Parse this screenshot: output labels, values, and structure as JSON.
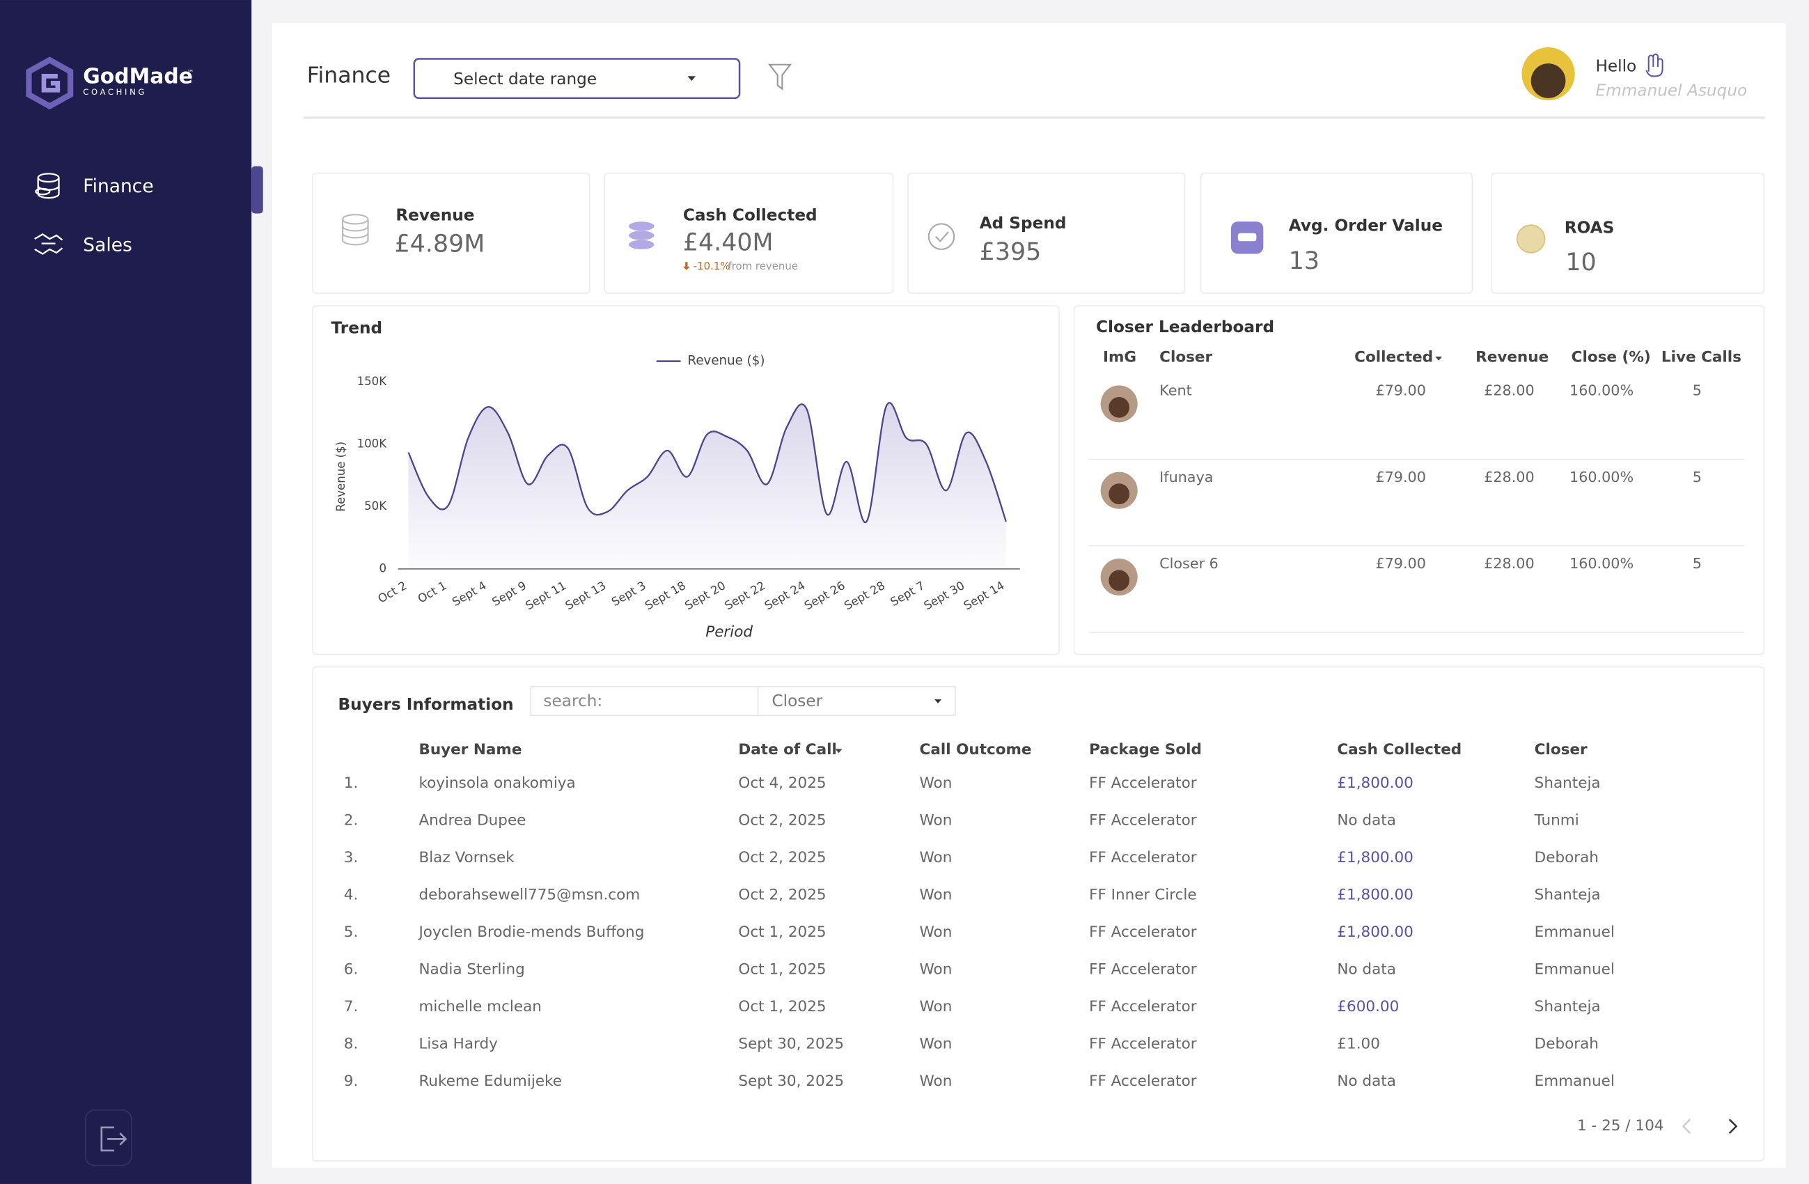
{
  "sidebar": {
    "brand": "GodMade",
    "brand_sub": "COACHING",
    "brand_mark": "™",
    "nav": [
      "Finance",
      "Sales"
    ]
  },
  "header": {
    "title": "Finance",
    "date_select": "Select date range",
    "greeting": "Hello",
    "user": "Emmanuel Asuquo"
  },
  "kpis": [
    {
      "label": "Revenue",
      "value": "£4.89M"
    },
    {
      "label": "Cash Collected",
      "value": "£4.40M",
      "change": "-10.1%",
      "change_note": "from revenue"
    },
    {
      "label": "Ad Spend",
      "value": "£395"
    },
    {
      "label": "Avg. Order Value",
      "value": 13
    },
    {
      "label": "ROAS",
      "value": 10
    }
  ],
  "trend": {
    "type": "line",
    "title": "Trend",
    "y_label": "Revenue ($)",
    "x_label": "Period",
    "categories": [
      "Oct 2",
      null,
      "Oct 1",
      null,
      "Sept 4",
      null,
      "Sept 9",
      null,
      "Sept 11",
      null,
      "Sept 13",
      null,
      "Sept 3",
      null,
      "Sept 18",
      null,
      "Sept 20",
      null,
      "Sept 22",
      null,
      "Sept 24",
      null,
      "Sept 26",
      null,
      "Sept 28",
      null,
      "Sept 7",
      null,
      "Sept 30",
      null,
      "Sept 14"
    ],
    "series": [
      {
        "name": "Revenue ($)",
        "color": "#4b4592",
        "values": [
          93500,
          58000,
          51000,
          105000,
          130000,
          109000,
          68000,
          91000,
          97000,
          49000,
          46000,
          63000,
          74000,
          95000,
          74000,
          108000,
          106000,
          95000,
          68000,
          114000,
          128000,
          44000,
          86000,
          38000,
          131000,
          105000,
          100000,
          63000,
          109000,
          86000,
          38000
        ]
      }
    ],
    "ylim": [
      0,
      150000
    ],
    "yticks": [
      {
        "value": 0,
        "label": "0"
      },
      {
        "value": 50000,
        "label": "50K"
      },
      {
        "value": 100000,
        "label": "100K"
      },
      {
        "value": 150000,
        "label": "150K"
      }
    ],
    "grid": false,
    "legend": "top"
  },
  "leaderboard": {
    "title": "Closer Leaderboard",
    "columns": [
      "ImG",
      "Closer",
      "Collected",
      "Revenue",
      "Close (%)",
      "Live Calls"
    ],
    "rows": [
      [
        "Kent",
        "£79.00",
        "£28.00",
        "160.00%",
        5
      ],
      [
        "Ifunaya",
        "£79.00",
        "£28.00",
        "160.00%",
        5
      ],
      [
        "Closer 6",
        "£79.00",
        "£28.00",
        "160.00%",
        5
      ]
    ]
  },
  "buyers": {
    "title": "Buyers Information",
    "search": "search:",
    "filter": "Closer",
    "columns": [
      "Buyer Name",
      "Date of Call",
      "Call Outcome",
      "Package Sold",
      "Cash Collected",
      "Closer"
    ],
    "rows": [
      [
        "1.",
        "koyinsola onakomiya",
        "Oct 4, 2025",
        "Won",
        "FF Accelerator",
        "£1,800.00",
        "Shanteja"
      ],
      [
        "2.",
        "Andrea Dupee",
        "Oct 2, 2025",
        "Won",
        "FF Accelerator",
        "No data",
        "Tunmi"
      ],
      [
        "3.",
        "Blaz Vornsek",
        "Oct 2, 2025",
        "Won",
        "FF Accelerator",
        "£1,800.00",
        "Deborah"
      ],
      [
        "4.",
        "deborahsewell775@msn.com",
        "Oct 2, 2025",
        "Won",
        "FF Inner Circle",
        "£1,800.00",
        "Shanteja"
      ],
      [
        "5.",
        "Joyclen Brodie-mends Buffong",
        "Oct 1, 2025",
        "Won",
        "FF Accelerator",
        "£1,800.00",
        "Emmanuel"
      ],
      [
        "6.",
        "Nadia Sterling",
        "Oct 1, 2025",
        "Won",
        "FF Accelerator",
        "No data",
        "Emmanuel"
      ],
      [
        "7.",
        "michelle mclean",
        "Oct 1, 2025",
        "Won",
        "FF Accelerator",
        "£600.00",
        "Shanteja"
      ],
      [
        "8.",
        "Lisa Hardy",
        "Sept 30, 2025",
        "Won",
        "FF Accelerator",
        "£1.00",
        "Deborah"
      ],
      [
        "9.",
        "Rukeme Edumijeke",
        "Sept 30, 2025",
        "Won",
        "FF Accelerator",
        "No data",
        "Emmanuel"
      ]
    ],
    "pagination": "1 - 25 / 104"
  }
}
